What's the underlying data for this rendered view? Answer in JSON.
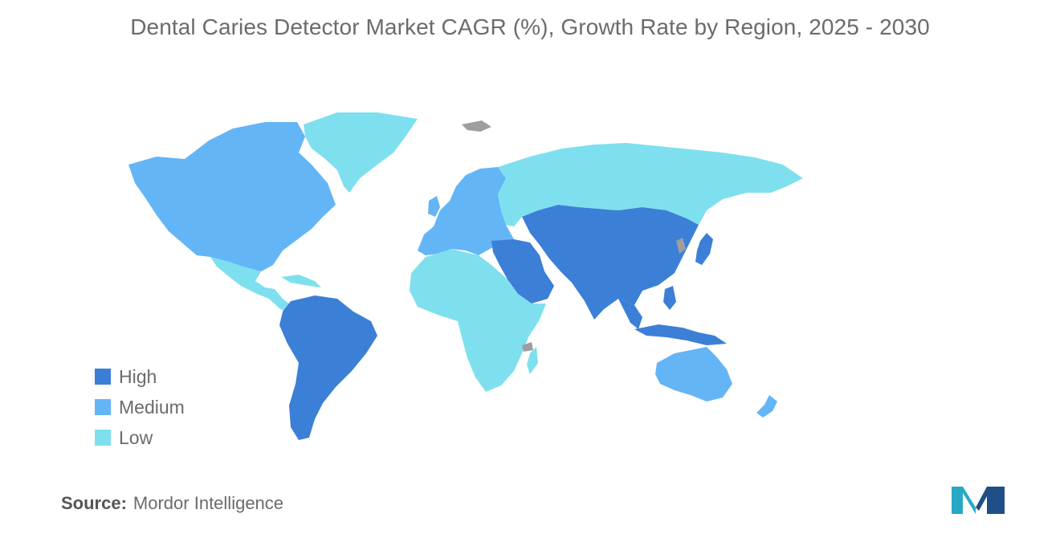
{
  "title": "Dental Caries Detector Market CAGR (%), Growth Rate by Region, 2025 - 2030",
  "legend": [
    {
      "label": "High",
      "color": "#3c7fd6"
    },
    {
      "label": "Medium",
      "color": "#64b5f6"
    },
    {
      "label": "Low",
      "color": "#7ee0ee"
    }
  ],
  "no_data_color": "#9e9e9e",
  "source": {
    "label": "Source:",
    "value": "Mordor Intelligence"
  },
  "logo_colors": {
    "left": "#27a9c4",
    "right": "#1f4f86"
  },
  "regions": [
    {
      "name": "North America",
      "level": "Medium"
    },
    {
      "name": "Greenland",
      "level": "Low"
    },
    {
      "name": "Central America & Caribbean",
      "level": "Low"
    },
    {
      "name": "South America",
      "level": "High"
    },
    {
      "name": "Europe",
      "level": "Medium"
    },
    {
      "name": "Russia",
      "level": "Low"
    },
    {
      "name": "Africa",
      "level": "Low"
    },
    {
      "name": "Middle East",
      "level": "High"
    },
    {
      "name": "Asia",
      "level": "High"
    },
    {
      "name": "Southeast Asia",
      "level": "High"
    },
    {
      "name": "Australia & New Zealand",
      "level": "Medium"
    }
  ]
}
